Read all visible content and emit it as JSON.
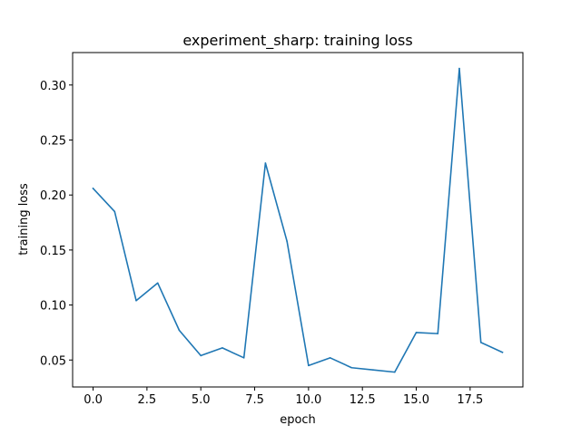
{
  "chart_data": {
    "type": "line",
    "title": "experiment_sharp: training loss",
    "xlabel": "epoch",
    "ylabel": "training loss",
    "xlim": [
      -0.95,
      19.95
    ],
    "ylim": [
      0.0255,
      0.3295
    ],
    "xticks": [
      0.0,
      2.5,
      5.0,
      7.5,
      10.0,
      12.5,
      15.0,
      17.5
    ],
    "xtick_labels": [
      "0.0",
      "2.5",
      "5.0",
      "7.5",
      "10.0",
      "12.5",
      "15.0",
      "17.5"
    ],
    "yticks": [
      0.05,
      0.1,
      0.15,
      0.2,
      0.25,
      0.3
    ],
    "ytick_labels": [
      "0.05",
      "0.10",
      "0.15",
      "0.20",
      "0.25",
      "0.30"
    ],
    "grid": false,
    "series": [
      {
        "color": "#1f77b4",
        "x": [
          0,
          1,
          2,
          3,
          4,
          5,
          6,
          7,
          8,
          9,
          10,
          11,
          12,
          13,
          14,
          15,
          16,
          17,
          18,
          19
        ],
        "y": [
          0.206,
          0.185,
          0.104,
          0.12,
          0.077,
          0.054,
          0.061,
          0.052,
          0.229,
          0.158,
          0.045,
          0.052,
          0.043,
          0.041,
          0.039,
          0.075,
          0.074,
          0.315,
          0.066,
          0.057
        ]
      }
    ]
  }
}
